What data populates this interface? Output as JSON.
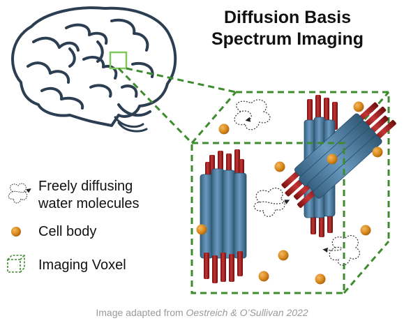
{
  "title": {
    "line1": "Diffusion Basis",
    "line2": "Spectrum Imaging"
  },
  "legend": {
    "water_line1": "Freely diffusing",
    "water_line2": "water molecules",
    "cell": "Cell body",
    "voxel": "Imaging Voxel"
  },
  "caption": {
    "prefix": "Image adapted from ",
    "source": "Oestreich & O’Sullivan 2022"
  },
  "colors": {
    "voxel": "#3f8c2f",
    "highlight": "#7ec85e",
    "fiber": "#4d7fa8",
    "myelin": "#9e1f1f",
    "cell": "#d98a1e",
    "brain_line": "#2c3e52"
  },
  "icons": [
    "brain-illustration",
    "voxel-cube-icon",
    "cell-body-icon",
    "water-molecule-icon",
    "fiber-bundle"
  ]
}
